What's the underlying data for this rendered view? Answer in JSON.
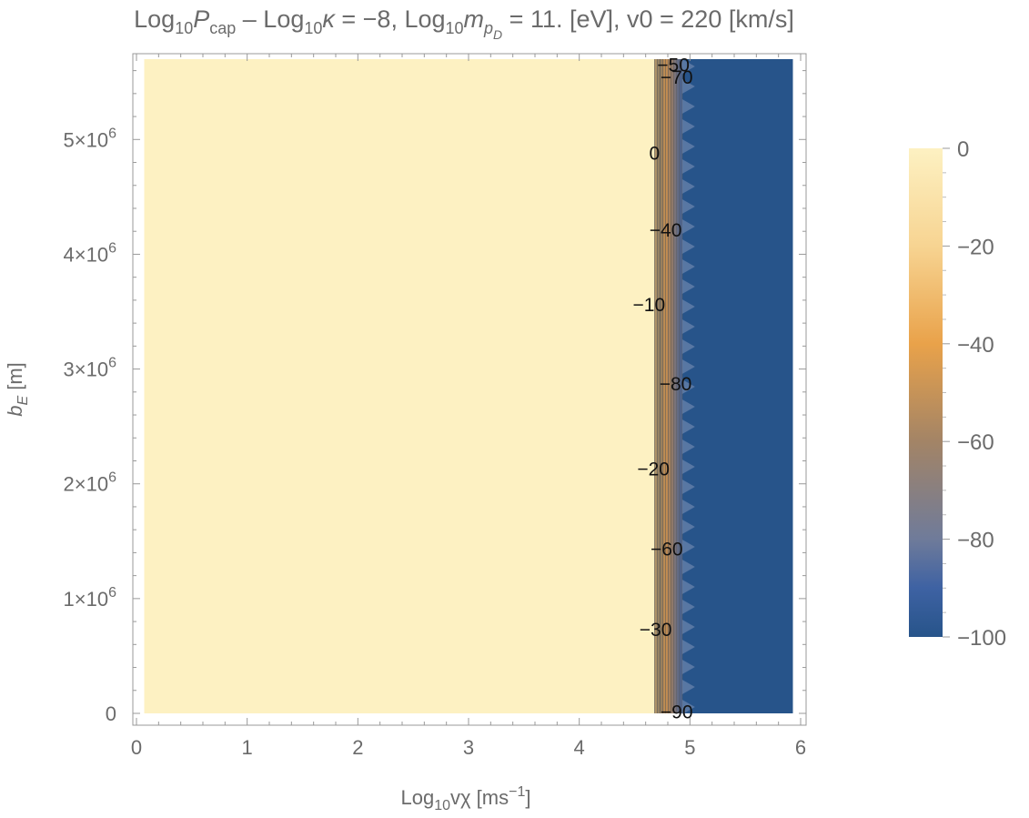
{
  "chart_data": {
    "type": "heatmap",
    "title": {
      "prefix": "Log",
      "sub1": "10",
      "p": "P",
      "cap": "cap",
      "mid1": " – Log",
      "sub2": "10",
      "kappa": "κ",
      "mid2": " = −8, Log",
      "sub3": "10",
      "m": "m",
      "p_sub": "p",
      "D_sub": "D",
      "rest": " = 11. [eV], v0 = 220 [km/s]"
    },
    "xlabel": {
      "prefix": "Log",
      "sub": "10",
      "main": "vχ [ms",
      "sup": "−1",
      "suffix": "]"
    },
    "ylabel": {
      "main": "b",
      "sub": "E",
      "suffix": " [m]"
    },
    "xlim": [
      0,
      6
    ],
    "ylim": [
      0,
      5700000
    ],
    "x_ticks": [
      0,
      1,
      2,
      3,
      4,
      5,
      6
    ],
    "x_tick_labels": [
      "0",
      "1",
      "2",
      "3",
      "4",
      "5",
      "6"
    ],
    "y_ticks": [
      0,
      1000000,
      2000000,
      3000000,
      4000000,
      5000000
    ],
    "y_tick_labels": [
      "0",
      "1×10",
      "2×10",
      "3×10",
      "4×10",
      "5×10"
    ],
    "y_tick_exponent": "6",
    "data_x_range": [
      0.07,
      5.93
    ],
    "data_y_range": [
      0,
      5700000
    ],
    "regions": [
      {
        "x_from": 0.07,
        "x_to": 4.68,
        "value": 0
      },
      {
        "x_from": 4.68,
        "x_to": 4.93,
        "value": -50
      },
      {
        "x_from": 4.93,
        "x_to": 5.93,
        "value": -100
      }
    ],
    "contour_labels": [
      {
        "text": "−50",
        "x": 4.85,
        "y": 5650000
      },
      {
        "text": "−70",
        "x": 4.88,
        "y": 5540000
      },
      {
        "text": "0",
        "x": 4.68,
        "y": 4880000
      },
      {
        "text": "−40",
        "x": 4.78,
        "y": 4210000
      },
      {
        "text": "−10",
        "x": 4.63,
        "y": 3560000
      },
      {
        "text": "−80",
        "x": 4.87,
        "y": 2870000
      },
      {
        "text": "−20",
        "x": 4.67,
        "y": 2130000
      },
      {
        "text": "−60",
        "x": 4.79,
        "y": 1430000
      },
      {
        "text": "−30",
        "x": 4.69,
        "y": 730000
      },
      {
        "text": "−90",
        "x": 4.88,
        "y": 10000
      }
    ],
    "colorbar": {
      "min": -100,
      "max": 0,
      "ticks": [
        0,
        -20,
        -40,
        -60,
        -80,
        -100
      ],
      "tick_labels": [
        "0",
        "−20",
        "−40",
        "−60",
        "−80",
        "−100"
      ],
      "color_stops": [
        {
          "value": 0,
          "color": "#fdf1c2"
        },
        {
          "value": -20,
          "color": "#f7d492"
        },
        {
          "value": -40,
          "color": "#e9a24a"
        },
        {
          "value": -60,
          "color": "#a38466"
        },
        {
          "value": -80,
          "color": "#6f7b9a"
        },
        {
          "value": -90,
          "color": "#3e62a3"
        },
        {
          "value": -100,
          "color": "#27548a"
        }
      ]
    }
  }
}
